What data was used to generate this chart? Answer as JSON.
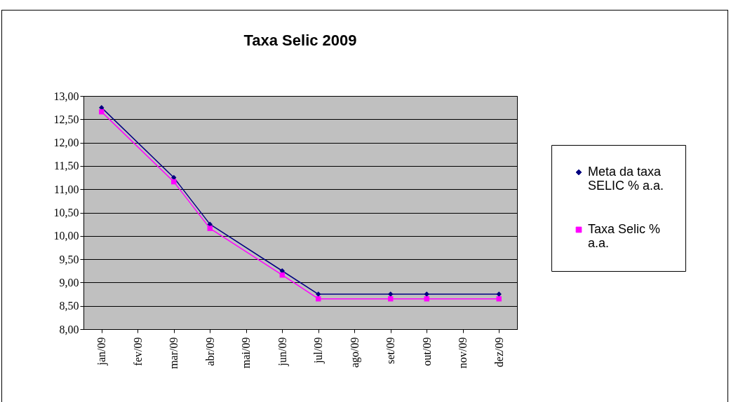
{
  "chart_data": {
    "type": "line",
    "title": "Taxa Selic 2009",
    "categories": [
      "jan/09",
      "fev/09",
      "mar/09",
      "abr/09",
      "mai/09",
      "jun/09",
      "jul/09",
      "ago/09",
      "set/09",
      "out/09",
      "nov/09",
      "dez/09"
    ],
    "series": [
      {
        "name": "Meta da taxa SELIC % a.a.",
        "color": "#000080",
        "marker": "diamond",
        "values": [
          12.75,
          null,
          11.25,
          10.25,
          null,
          9.25,
          8.75,
          null,
          8.75,
          8.75,
          null,
          8.75
        ]
      },
      {
        "name": "Taxa Selic % a.a.",
        "color": "#ff00ff",
        "marker": "square",
        "values": [
          12.66,
          null,
          11.16,
          10.16,
          null,
          9.16,
          8.65,
          null,
          8.65,
          8.65,
          null,
          8.65
        ]
      }
    ],
    "ylim": [
      8,
      13
    ],
    "yticks": [
      {
        "value": 8,
        "label": "8,00"
      },
      {
        "value": 8.5,
        "label": "8,50"
      },
      {
        "value": 9,
        "label": "9,00"
      },
      {
        "value": 9.5,
        "label": "9,50"
      },
      {
        "value": 10,
        "label": "10,00"
      },
      {
        "value": 10.5,
        "label": "10,50"
      },
      {
        "value": 11,
        "label": "11,00"
      },
      {
        "value": 11.5,
        "label": "11,50"
      },
      {
        "value": 12,
        "label": "12,00"
      },
      {
        "value": 12.5,
        "label": "12,50"
      },
      {
        "value": 13,
        "label": "13,00"
      }
    ],
    "grid": "y",
    "legend": "right",
    "line_style": "solid"
  }
}
